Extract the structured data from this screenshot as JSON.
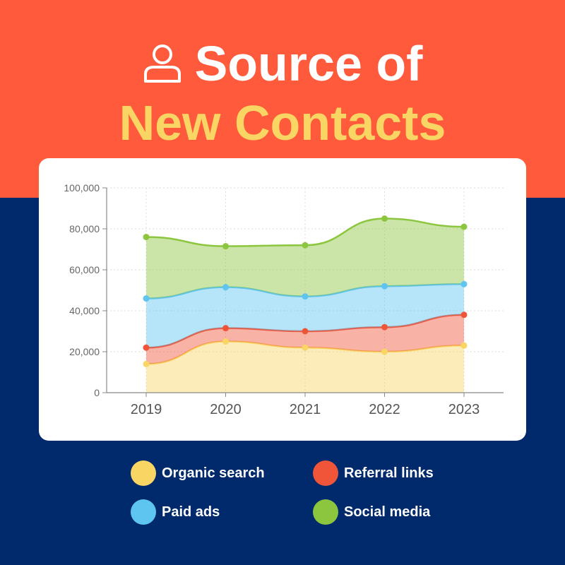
{
  "colors": {
    "top_band": "#ff5a3c",
    "bottom_band": "#002a6b",
    "title_white": "#ffffff",
    "title_yellow": "#f9d564",
    "organic": "#f9d564",
    "referral": "#f0553a",
    "paid": "#5ec4f0",
    "social": "#8cc63f"
  },
  "header": {
    "icon": "user-icon",
    "title_line1": "Source of",
    "title_line2": "New Contacts"
  },
  "chart_data": {
    "type": "area",
    "stacked": true,
    "x": [
      "2019",
      "2020",
      "2021",
      "2022",
      "2023"
    ],
    "ylim": [
      0,
      100000
    ],
    "yticks": [
      "0",
      "20,000",
      "40,000",
      "60,000",
      "80,000",
      "100,000"
    ],
    "grid": true,
    "legend_position": "bottom",
    "series": [
      {
        "name": "Organic search",
        "values": [
          14000,
          25000,
          22000,
          20000,
          23000
        ]
      },
      {
        "name": "Referral links",
        "values": [
          8000,
          6500,
          8000,
          12000,
          15000
        ]
      },
      {
        "name": "Paid ads",
        "values": [
          24000,
          20000,
          17000,
          20000,
          15000
        ]
      },
      {
        "name": "Social media",
        "values": [
          30000,
          20000,
          25000,
          33000,
          28000
        ]
      }
    ]
  }
}
